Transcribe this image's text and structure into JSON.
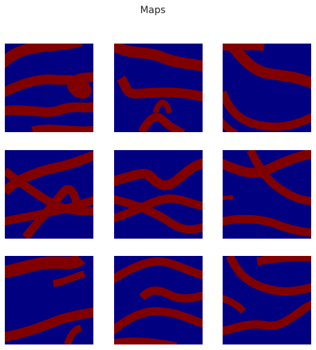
{
  "title": "Maps"
}
